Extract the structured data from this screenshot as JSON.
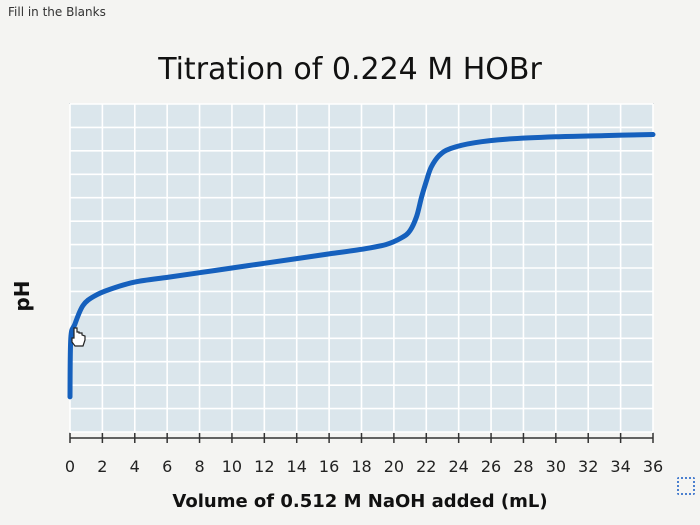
{
  "page": {
    "header": "Fill in the Blanks"
  },
  "chart_data": {
    "type": "line",
    "title": "Titration of 0.224 M HOBr",
    "xlabel": "Volume of 0.512 M NaOH added (mL)",
    "ylabel": "pH",
    "xlim": [
      0,
      36
    ],
    "ylim": [
      0,
      14
    ],
    "x_ticks": [
      0,
      2,
      4,
      6,
      8,
      10,
      12,
      14,
      16,
      18,
      20,
      22,
      24,
      26,
      28,
      30,
      32,
      34,
      36
    ],
    "grid": true,
    "line_color": "#1560bd",
    "plot_background": "#dbe6ec",
    "grid_color": "#ffffff",
    "series": [
      {
        "x": [
          0,
          0.05,
          0.3,
          0.8,
          1.5,
          2.5,
          4,
          6,
          8,
          10,
          12,
          14,
          16,
          18,
          19.5,
          20.5,
          21,
          21.4,
          21.7,
          22.0,
          22.3,
          22.8,
          23.5,
          25,
          27,
          30,
          33,
          36
        ],
        "y": [
          1.5,
          4.0,
          4.6,
          5.4,
          5.8,
          6.1,
          6.4,
          6.6,
          6.8,
          7.0,
          7.2,
          7.4,
          7.6,
          7.8,
          8.0,
          8.3,
          8.6,
          9.2,
          10.0,
          10.7,
          11.3,
          11.8,
          12.1,
          12.35,
          12.5,
          12.6,
          12.65,
          12.7
        ]
      }
    ]
  },
  "icons": {
    "cursor": "hand-pointer-icon",
    "corner": "expand-icon"
  }
}
